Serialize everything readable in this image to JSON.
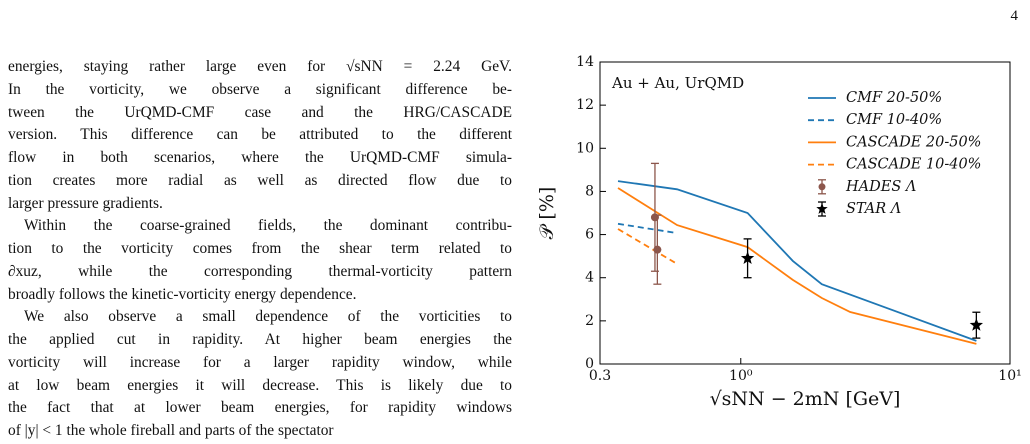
{
  "page_number": "4",
  "body": {
    "paragraphs": [
      {
        "lines": [
          "energies, staying rather large even for √sNN = 2.24 GeV.",
          "In the vorticity, we observe a significant difference be-",
          "tween the UrQMD-CMF case and the HRG/CASCADE",
          "version. This difference can be attributed to the different",
          "flow in both scenarios, where the UrQMD-CMF simula-",
          "tion creates more radial as well as directed flow due to",
          "larger pressure gradients."
        ]
      },
      {
        "lines": [
          "Within the coarse-grained fields, the dominant contribu-",
          "tion to the vorticity comes from the shear term related to",
          "∂xuz, while the corresponding thermal-vorticity pattern",
          "broadly follows the kinetic-vorticity energy dependence."
        ]
      },
      {
        "lines": [
          "We also observe a small dependence of the vorticities to",
          "the applied cut in rapidity. At higher beam energies the",
          "vorticity will increase for a larger rapidity window, while",
          "at low beam energies it will decrease. This is likely due to",
          "the fact that at lower beam energies, for rapidity windows",
          "of |y| < 1 the whole fireball and parts of the spectator"
        ]
      }
    ]
  },
  "chart_data": {
    "type": "line",
    "annotation": "Au + Au, UrQMD",
    "xlabel": "√sNN − 2mN [GeV]",
    "ylabel": "𝒫 [%]",
    "xscale": "log",
    "xlim": [
      0.3,
      10
    ],
    "xticks": [
      0.3,
      {
        "value": 1,
        "label": "10⁰"
      },
      {
        "value": 10,
        "label": "10¹"
      }
    ],
    "ylim": [
      0,
      14
    ],
    "yticks": [
      0,
      2,
      4,
      6,
      8,
      10,
      12,
      14
    ],
    "legend": "upper right",
    "series": [
      {
        "name": "CMF 20-50%",
        "color": "#1f77b4",
        "linestyle": "solid",
        "x": [
          0.35,
          0.58,
          1.06,
          1.56,
          2.0,
          7.5
        ],
        "values": [
          8.48,
          8.1,
          7.0,
          4.78,
          3.7,
          1.07
        ]
      },
      {
        "name": "CMF 10-40%",
        "color": "#1f77b4",
        "linestyle": "dashed",
        "x": [
          0.35,
          0.58
        ],
        "values": [
          6.5,
          6.07
        ]
      },
      {
        "name": "CASCADE 20-50%",
        "color": "#ff7f0e",
        "linestyle": "solid",
        "x": [
          0.35,
          0.58,
          1.06,
          1.56,
          2.0,
          2.55,
          7.5
        ],
        "values": [
          8.16,
          6.44,
          5.42,
          3.9,
          3.06,
          2.41,
          0.93
        ]
      },
      {
        "name": "CASCADE 10-40%",
        "color": "#ff7f0e",
        "linestyle": "dashed",
        "x": [
          0.35,
          0.58
        ],
        "values": [
          6.26,
          4.64
        ]
      },
      {
        "name": "HADES Λ",
        "color": "#8c564b",
        "marker": "circle",
        "x": [
          0.48,
          0.49
        ],
        "values": [
          6.8,
          5.3
        ],
        "errors": [
          2.5,
          1.6
        ]
      },
      {
        "name": "STAR Λ",
        "color": "#000000",
        "marker": "star",
        "x": [
          1.06,
          7.5
        ],
        "values": [
          4.9,
          1.8
        ],
        "errors": [
          0.9,
          0.6
        ]
      }
    ]
  }
}
